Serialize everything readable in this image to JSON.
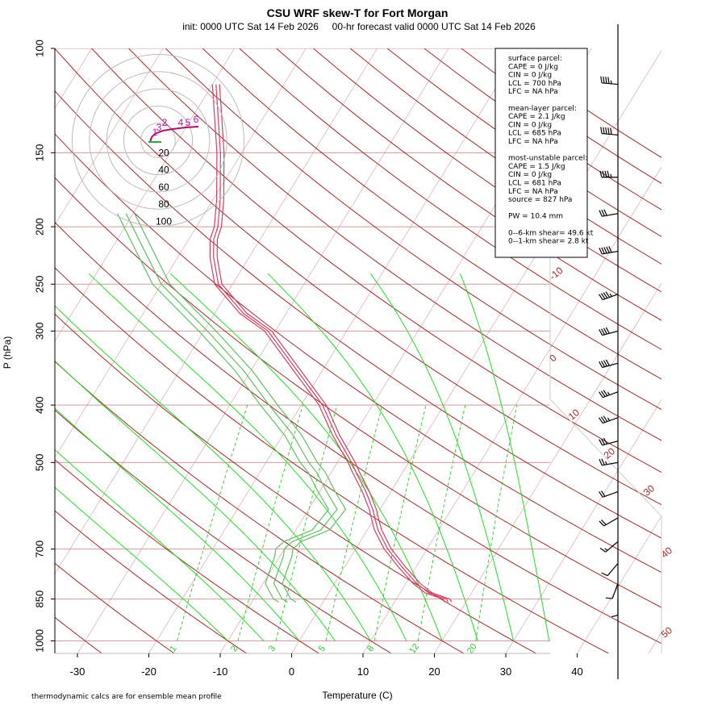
{
  "chart_data": {
    "type": "skew-t",
    "title": "CSU WRF skew-T for Fort Morgan",
    "subtitle": "init: 0000 UTC Sat 14 Feb 2026     00-hr forecast valid 0000 UTC Sat 14 Feb 2026",
    "xlabel": "Temperature (C)",
    "ylabel": "P (hPa)",
    "footnote": "thermodynamic calcs are for ensemble mean profile",
    "pressure_ticks": [
      100,
      150,
      200,
      250,
      300,
      400,
      500,
      700,
      850,
      1000
    ],
    "temperature_ticks": [
      -30,
      -20,
      -10,
      0,
      10,
      20,
      30,
      40
    ],
    "xlim": [
      -33,
      46
    ],
    "plim": [
      100,
      1050
    ],
    "isotherm_labels": [
      -10,
      0,
      10,
      20,
      30,
      40,
      50
    ],
    "mixing_ratio_labels": [
      1,
      2,
      3,
      5,
      8,
      12,
      20
    ],
    "hodograph_rings": [
      "20",
      "40",
      "60",
      "80",
      "100"
    ],
    "hodograph_height_labels": [
      "1",
      "2",
      "3",
      "4",
      "5",
      "6"
    ],
    "stats_box": [
      "surface parcel:",
      "CAPE = 0 J/kg",
      "CIN = 0 J/kg",
      "LCL = 700 hPa",
      "LFC = NA hPa",
      "",
      "mean-layer parcel:",
      "CAPE = 2.1 J/kg",
      "CIN = 0 J/kg",
      "LCL = 685 hPa",
      "LFC = NA hPa",
      "",
      "most-unstable parcel:",
      "CAPE = 1.5 J/kg",
      "CIN = 0 J/kg",
      "LCL = 681 hPa",
      "LFC = NA hPa",
      "source = 827 hPa",
      "",
      "PW =  10.4 mm",
      "",
      "0--6-km shear= 49.6 kt",
      "0--1-km shear= 2.8 kt"
    ],
    "series": [
      {
        "name": "temperature",
        "points": [
          [
            860,
            17.5
          ],
          [
            850,
            17.0
          ],
          [
            830,
            14.0
          ],
          [
            800,
            11.5
          ],
          [
            750,
            8.0
          ],
          [
            700,
            4.5
          ],
          [
            650,
            1.5
          ],
          [
            620,
            0.0
          ],
          [
            600,
            -1.0
          ],
          [
            560,
            -3.5
          ],
          [
            520,
            -6.5
          ],
          [
            500,
            -8.0
          ],
          [
            450,
            -12.5
          ],
          [
            400,
            -17.0
          ],
          [
            350,
            -23.5
          ],
          [
            300,
            -31.0
          ],
          [
            280,
            -36.0
          ],
          [
            250,
            -42.0
          ],
          [
            225,
            -45.0
          ],
          [
            210,
            -46.5
          ],
          [
            200,
            -47.0
          ],
          [
            180,
            -49.0
          ],
          [
            150,
            -53.0
          ],
          [
            130,
            -56.5
          ],
          [
            115,
            -59.5
          ]
        ]
      },
      {
        "name": "dewpoint",
        "points": [
          [
            860,
            -5.0
          ],
          [
            850,
            -6.0
          ],
          [
            800,
            -8.5
          ],
          [
            760,
            -9.0
          ],
          [
            720,
            -9.5
          ],
          [
            700,
            -10.0
          ],
          [
            680,
            -9.5
          ],
          [
            650,
            -6.5
          ],
          [
            600,
            -6.0
          ],
          [
            560,
            -9.0
          ],
          [
            520,
            -12.0
          ],
          [
            500,
            -14.0
          ],
          [
            450,
            -18.5
          ],
          [
            400,
            -24.5
          ],
          [
            350,
            -31.0
          ],
          [
            300,
            -39.5
          ],
          [
            250,
            -50.0
          ],
          [
            210,
            -57.0
          ],
          [
            190,
            -61.0
          ]
        ]
      }
    ],
    "wind_barbs": [
      {
        "p": 115,
        "dir": 275,
        "spd": 45
      },
      {
        "p": 140,
        "dir": 275,
        "spd": 50
      },
      {
        "p": 165,
        "dir": 270,
        "spd": 45
      },
      {
        "p": 190,
        "dir": 260,
        "spd": 30
      },
      {
        "p": 220,
        "dir": 260,
        "spd": 50
      },
      {
        "p": 260,
        "dir": 250,
        "spd": 45
      },
      {
        "p": 300,
        "dir": 255,
        "spd": 40
      },
      {
        "p": 340,
        "dir": 255,
        "spd": 40
      },
      {
        "p": 380,
        "dir": 250,
        "spd": 35
      },
      {
        "p": 420,
        "dir": 250,
        "spd": 35
      },
      {
        "p": 460,
        "dir": 255,
        "spd": 30
      },
      {
        "p": 500,
        "dir": 260,
        "spd": 25
      },
      {
        "p": 560,
        "dir": 250,
        "spd": 20
      },
      {
        "p": 620,
        "dir": 240,
        "spd": 20
      },
      {
        "p": 680,
        "dir": 230,
        "spd": 15
      },
      {
        "p": 740,
        "dir": 220,
        "spd": 10
      },
      {
        "p": 800,
        "dir": 200,
        "spd": 10
      },
      {
        "p": 850,
        "dir": 180,
        "spd": 10
      }
    ],
    "colors": {
      "isotherm": "#a52a2a",
      "isobar": "#d59a9a",
      "dry_adiabat": "#a52a2a",
      "moist_adiabat": "#22dd22",
      "mixing_ratio": "#22cc22",
      "temperature": "#d04060",
      "dewpoint": "#60c060",
      "hodograph_ring": "#bbbbbb",
      "hodograph_trace": "#aa1166"
    }
  }
}
